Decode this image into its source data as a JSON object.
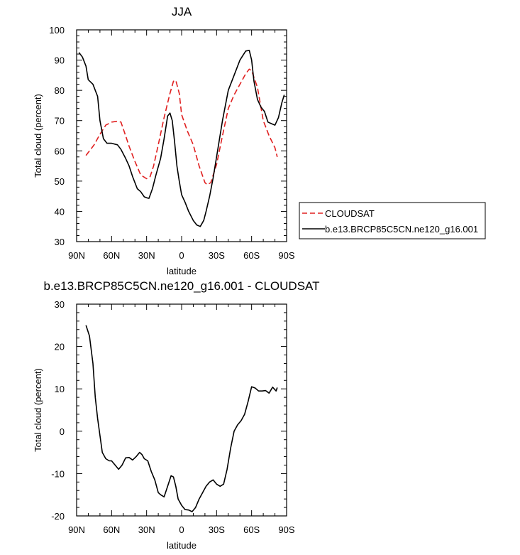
{
  "chart_data": [
    {
      "type": "line",
      "title": "JJA",
      "xlabel": "latitude",
      "ylabel": "Total cloud (percent)",
      "xlim": [
        90,
        -90
      ],
      "ylim": [
        30,
        100
      ],
      "x_ticks": [
        90,
        60,
        30,
        0,
        -30,
        -60,
        -90
      ],
      "x_tick_labels": [
        "90N",
        "60N",
        "30N",
        "0",
        "30S",
        "60S",
        "90S"
      ],
      "y_ticks": [
        30,
        40,
        50,
        60,
        70,
        80,
        90,
        100
      ],
      "y_tick_labels": [
        "30",
        "40",
        "50",
        "60",
        "70",
        "80",
        "90",
        "100"
      ],
      "legend": "outside-right",
      "series": [
        {
          "name": "CLOUDSAT",
          "color": "#e02020",
          "dash": "dashed",
          "x": [
            82,
            75,
            70,
            65,
            60,
            55,
            52,
            48,
            45,
            40,
            35,
            30,
            27,
            24,
            20,
            15,
            10,
            7,
            5,
            2,
            0,
            -5,
            -10,
            -15,
            -20,
            -22,
            -25,
            -30,
            -35,
            -40,
            -45,
            -50,
            -55,
            -58,
            -60,
            -65,
            -70,
            -75,
            -80,
            -82
          ],
          "y": [
            58.5,
            62,
            65.5,
            68.5,
            69.5,
            69.8,
            69.5,
            65,
            61.5,
            56.5,
            52,
            50.8,
            51.5,
            55,
            62,
            71,
            79,
            83,
            83.3,
            79,
            72,
            66.5,
            62,
            55,
            49.5,
            48.8,
            49.5,
            55.5,
            65,
            74,
            78.5,
            82,
            85.5,
            87,
            86.5,
            81,
            70,
            65,
            61,
            58
          ]
        },
        {
          "name": "b.e13.BRCP85C5CN.ne120_g16.001",
          "color": "#000000",
          "dash": "solid",
          "x": [
            88,
            85,
            82,
            80,
            76,
            72,
            70,
            67,
            64,
            60,
            55,
            52,
            48,
            45,
            42,
            38,
            35,
            32,
            30,
            28,
            25,
            22,
            18,
            15,
            12,
            10,
            8,
            6,
            4,
            2,
            0,
            -3,
            -6,
            -10,
            -13,
            -16,
            -19,
            -21,
            -24,
            -27,
            -30,
            -35,
            -40,
            -45,
            -50,
            -55,
            -58,
            -60,
            -62,
            -65,
            -68,
            -71,
            -74,
            -77,
            -80,
            -83,
            -86,
            -88
          ],
          "y": [
            92.5,
            91,
            88,
            83.5,
            82,
            78,
            70,
            64,
            62.5,
            62.5,
            62,
            60.5,
            57.5,
            55,
            51.5,
            47.5,
            46.5,
            44.8,
            44.5,
            44.3,
            47.5,
            52,
            57.5,
            64,
            71.5,
            72.5,
            70,
            63,
            55,
            50,
            45.5,
            43,
            40,
            37,
            35.5,
            35,
            37,
            40,
            45,
            51,
            58,
            70,
            80,
            85,
            90,
            93,
            93.2,
            90,
            83,
            77,
            74.5,
            73,
            69.5,
            69,
            68.5,
            71,
            76,
            78.5
          ]
        }
      ]
    },
    {
      "type": "line",
      "title": "b.e13.BRCP85C5CN.ne120_g16.001 - CLOUDSAT",
      "xlabel": "latitude",
      "ylabel": "Total cloud (percent)",
      "xlim": [
        90,
        -90
      ],
      "ylim": [
        -20,
        30
      ],
      "x_ticks": [
        90,
        60,
        30,
        0,
        -30,
        -60,
        -90
      ],
      "x_tick_labels": [
        "90N",
        "60N",
        "30N",
        "0",
        "30S",
        "60S",
        "90S"
      ],
      "y_ticks": [
        -20,
        -10,
        0,
        10,
        20,
        30
      ],
      "y_tick_labels": [
        "-20",
        "-10",
        "0",
        "10",
        "20",
        "30"
      ],
      "legend": "none",
      "series": [
        {
          "color": "#000000",
          "dash": "solid",
          "x": [
            82,
            79,
            76,
            74,
            72,
            70,
            68,
            65,
            62,
            60,
            57,
            54,
            51,
            48,
            45,
            42,
            39,
            36,
            34,
            32,
            29,
            26,
            23,
            20,
            18,
            15,
            12,
            9,
            7,
            5,
            3,
            0,
            -3,
            -6,
            -9,
            -12,
            -15,
            -18,
            -21,
            -24,
            -27,
            -30,
            -33,
            -36,
            -39,
            -42,
            -45,
            -48,
            -51,
            -54,
            -57,
            -60,
            -63,
            -66,
            -69,
            -72,
            -75,
            -78,
            -81,
            -82
          ],
          "y": [
            25,
            22.5,
            16,
            8,
            3,
            -1,
            -5,
            -6.5,
            -7,
            -7,
            -8,
            -9,
            -8,
            -6.3,
            -6.2,
            -6.8,
            -6,
            -5,
            -5.5,
            -6.5,
            -7,
            -9.5,
            -11.5,
            -14.5,
            -15,
            -15.5,
            -13,
            -10.5,
            -10.8,
            -13,
            -16,
            -17.5,
            -18.5,
            -18.6,
            -19,
            -18,
            -16,
            -14.5,
            -13,
            -12,
            -11.5,
            -12.5,
            -13,
            -12.5,
            -9,
            -4,
            0,
            1.5,
            2.5,
            4,
            7,
            10.5,
            10.2,
            9.5,
            9.5,
            9.6,
            9,
            10.4,
            9.5,
            10.3
          ]
        }
      ]
    }
  ]
}
